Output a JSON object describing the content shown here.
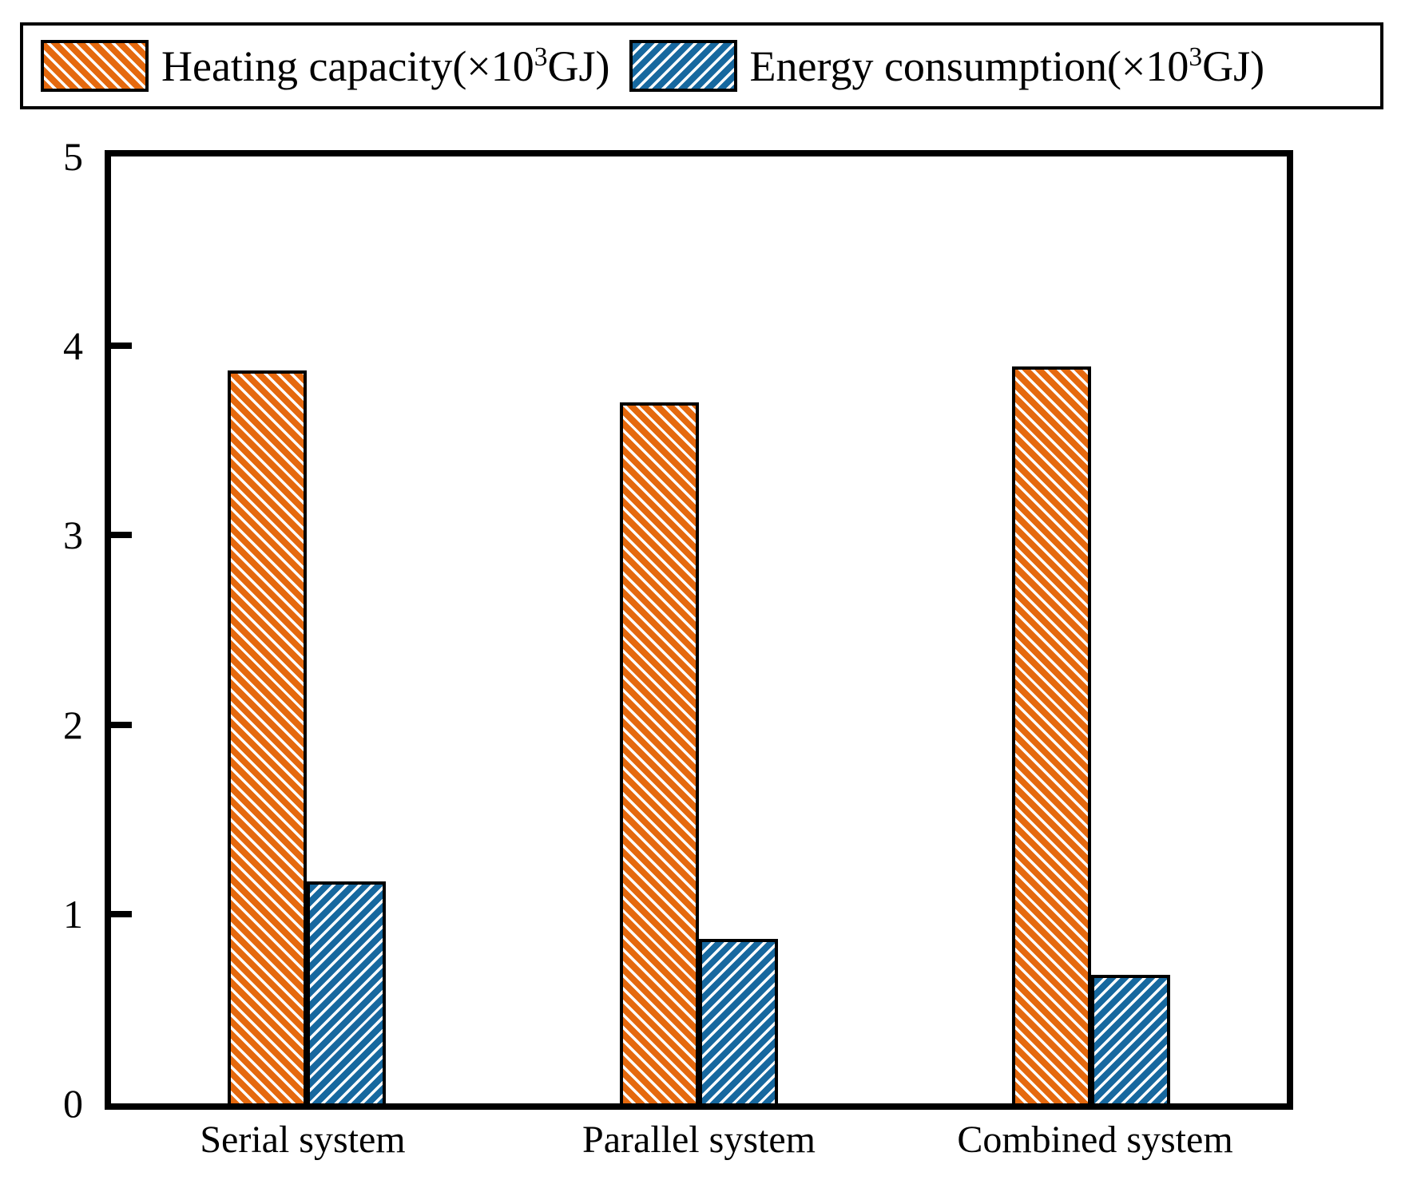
{
  "chart_data": {
    "type": "bar",
    "categories": [
      "Serial system",
      "Parallel system",
      "Combined system"
    ],
    "series": [
      {
        "name": "Heating capacity(×10³GJ)",
        "label_prefix": "Heating capacity(×10",
        "label_sup": "3",
        "label_suffix": "GJ)",
        "color": "#E5690E",
        "hatch": "/",
        "values": [
          3.87,
          3.7,
          3.89
        ]
      },
      {
        "name": "Energy consumption(×10³GJ)",
        "label_prefix": "Energy consumption(×10",
        "label_sup": "3",
        "label_suffix": "GJ)",
        "color": "#17689F",
        "hatch": "\\",
        "values": [
          1.17,
          0.87,
          0.68
        ]
      }
    ],
    "title": "",
    "xlabel": "",
    "ylabel": "",
    "ylim": [
      0,
      5
    ],
    "yticks": [
      5,
      4,
      3,
      2,
      1,
      0
    ],
    "grid": false,
    "legend_position": "top",
    "hatch_colors": {
      "stripe_white": "#ffffff",
      "frame": "#000000"
    }
  }
}
